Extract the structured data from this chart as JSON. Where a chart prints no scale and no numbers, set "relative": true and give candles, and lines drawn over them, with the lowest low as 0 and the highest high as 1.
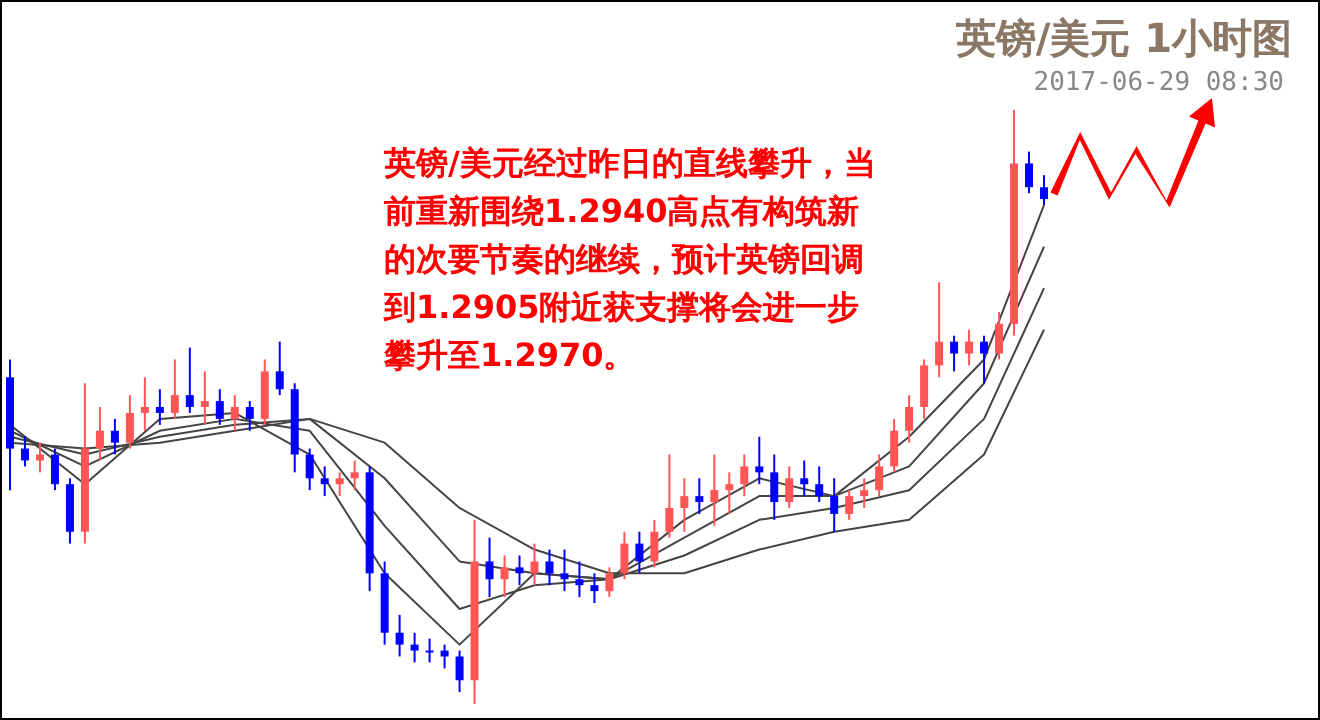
{
  "chart_data": {
    "type": "candlestick",
    "relative": true,
    "title": "英镑/美元 1小时图",
    "subtitle": "2017-06-29 08:30",
    "annotations": [
      "英镑/美元经过昨日的直线攀升，当前重新围绕1.2940高点有构筑新的次要节奏的继续，预计英镑回调到1.2905附近获支撑将会进一步攀升至1.2970。"
    ],
    "categories": [
      null,
      null,
      null,
      null,
      null,
      null,
      null,
      null,
      null,
      null,
      null,
      null,
      null,
      null,
      null,
      null,
      null,
      null,
      null,
      null,
      null,
      null,
      null,
      null,
      null,
      null,
      null,
      null,
      null,
      null,
      null,
      null,
      null,
      null,
      null,
      null,
      null,
      null,
      null,
      null,
      null,
      null,
      null,
      null,
      null,
      null,
      null,
      null,
      null,
      null,
      null,
      null,
      null,
      null,
      null,
      null,
      null,
      null,
      null,
      null,
      null,
      null,
      null,
      null,
      null,
      null,
      null,
      null,
      null,
      null
    ],
    "ohlc": [
      [
        0.55,
        0.58,
        0.36,
        0.43
      ],
      [
        0.43,
        0.45,
        0.4,
        0.41
      ],
      [
        0.41,
        0.44,
        0.39,
        0.42
      ],
      [
        0.42,
        0.43,
        0.36,
        0.37
      ],
      [
        0.37,
        0.38,
        0.27,
        0.29
      ],
      [
        0.29,
        0.54,
        0.27,
        0.43
      ],
      [
        0.43,
        0.5,
        0.41,
        0.46
      ],
      [
        0.46,
        0.48,
        0.42,
        0.44
      ],
      [
        0.44,
        0.52,
        0.43,
        0.49
      ],
      [
        0.49,
        0.55,
        0.46,
        0.5
      ],
      [
        0.5,
        0.53,
        0.47,
        0.49
      ],
      [
        0.49,
        0.58,
        0.48,
        0.52
      ],
      [
        0.52,
        0.6,
        0.49,
        0.5
      ],
      [
        0.5,
        0.56,
        0.47,
        0.51
      ],
      [
        0.51,
        0.53,
        0.47,
        0.48
      ],
      [
        0.48,
        0.52,
        0.46,
        0.5
      ],
      [
        0.5,
        0.51,
        0.46,
        0.48
      ],
      [
        0.48,
        0.58,
        0.47,
        0.56
      ],
      [
        0.56,
        0.61,
        0.52,
        0.53
      ],
      [
        0.53,
        0.54,
        0.39,
        0.42
      ],
      [
        0.42,
        0.43,
        0.36,
        0.38
      ],
      [
        0.38,
        0.4,
        0.35,
        0.37
      ],
      [
        0.37,
        0.39,
        0.35,
        0.38
      ],
      [
        0.38,
        0.41,
        0.36,
        0.39
      ],
      [
        0.39,
        0.4,
        0.19,
        0.22
      ],
      [
        0.22,
        0.24,
        0.1,
        0.12
      ],
      [
        0.12,
        0.15,
        0.08,
        0.1
      ],
      [
        0.1,
        0.12,
        0.07,
        0.09
      ],
      [
        0.09,
        0.11,
        0.07,
        0.09
      ],
      [
        0.09,
        0.1,
        0.06,
        0.08
      ],
      [
        0.08,
        0.09,
        0.02,
        0.04
      ],
      [
        0.04,
        0.31,
        0.0,
        0.24
      ],
      [
        0.24,
        0.28,
        0.18,
        0.21
      ],
      [
        0.21,
        0.25,
        0.18,
        0.23
      ],
      [
        0.23,
        0.25,
        0.2,
        0.22
      ],
      [
        0.22,
        0.27,
        0.2,
        0.24
      ],
      [
        0.24,
        0.26,
        0.2,
        0.22
      ],
      [
        0.22,
        0.26,
        0.19,
        0.21
      ],
      [
        0.21,
        0.24,
        0.18,
        0.2
      ],
      [
        0.2,
        0.22,
        0.17,
        0.19
      ],
      [
        0.19,
        0.23,
        0.18,
        0.22
      ],
      [
        0.22,
        0.29,
        0.21,
        0.27
      ],
      [
        0.27,
        0.29,
        0.22,
        0.24
      ],
      [
        0.24,
        0.31,
        0.23,
        0.29
      ],
      [
        0.29,
        0.42,
        0.28,
        0.33
      ],
      [
        0.33,
        0.38,
        0.29,
        0.35
      ],
      [
        0.35,
        0.38,
        0.32,
        0.34
      ],
      [
        0.34,
        0.42,
        0.3,
        0.36
      ],
      [
        0.36,
        0.39,
        0.32,
        0.37
      ],
      [
        0.37,
        0.42,
        0.35,
        0.4
      ],
      [
        0.4,
        0.45,
        0.37,
        0.39
      ],
      [
        0.39,
        0.42,
        0.31,
        0.34
      ],
      [
        0.34,
        0.4,
        0.33,
        0.38
      ],
      [
        0.38,
        0.41,
        0.35,
        0.37
      ],
      [
        0.37,
        0.4,
        0.34,
        0.35
      ],
      [
        0.35,
        0.38,
        0.29,
        0.32
      ],
      [
        0.32,
        0.36,
        0.31,
        0.35
      ],
      [
        0.35,
        0.38,
        0.33,
        0.36
      ],
      [
        0.36,
        0.42,
        0.35,
        0.4
      ],
      [
        0.4,
        0.48,
        0.39,
        0.46
      ],
      [
        0.46,
        0.52,
        0.44,
        0.5
      ],
      [
        0.5,
        0.58,
        0.48,
        0.57
      ],
      [
        0.57,
        0.71,
        0.55,
        0.61
      ],
      [
        0.61,
        0.62,
        0.56,
        0.59
      ],
      [
        0.59,
        0.63,
        0.57,
        0.61
      ],
      [
        0.61,
        0.62,
        0.54,
        0.59
      ],
      [
        0.59,
        0.66,
        0.58,
        0.64
      ],
      [
        0.64,
        1.0,
        0.62,
        0.91
      ],
      [
        0.91,
        0.93,
        0.86,
        0.87
      ],
      [
        0.87,
        0.89,
        0.84,
        0.85
      ]
    ],
    "colors": [
      "#0000ff",
      "#0000ff",
      "#ff5555",
      "#0000ff",
      "#0000ff",
      "#ff5555",
      "#ff5555",
      "#0000ff",
      "#ff5555",
      "#ff5555",
      "#0000ff",
      "#ff5555",
      "#0000ff",
      "#ff5555",
      "#0000ff",
      "#ff5555",
      "#0000ff",
      "#ff5555",
      "#0000ff",
      "#0000ff",
      "#0000ff",
      "#0000ff",
      "#ff5555",
      "#ff5555",
      "#0000ff",
      "#0000ff",
      "#0000ff",
      "#0000ff",
      "#0000ff",
      "#0000ff",
      "#0000ff",
      "#ff5555",
      "#0000ff",
      "#ff5555",
      "#0000ff",
      "#ff5555",
      "#0000ff",
      "#0000ff",
      "#0000ff",
      "#0000ff",
      "#ff5555",
      "#ff5555",
      "#0000ff",
      "#ff5555",
      "#ff5555",
      "#ff5555",
      "#0000ff",
      "#ff5555",
      "#ff5555",
      "#ff5555",
      "#0000ff",
      "#0000ff",
      "#ff5555",
      "#0000ff",
      "#0000ff",
      "#0000ff",
      "#ff5555",
      "#ff5555",
      "#ff5555",
      "#ff5555",
      "#ff5555",
      "#ff5555",
      "#ff5555",
      "#0000ff",
      "#ff5555",
      "#0000ff",
      "#ff5555",
      "#ff5555",
      "#0000ff",
      "#0000ff"
    ],
    "series": [
      {
        "type": "line",
        "color": "#444444",
        "values": [
          0.47,
          null,
          null,
          null,
          null,
          0.37,
          null,
          null,
          null,
          null,
          0.48,
          null,
          null,
          null,
          null,
          0.49,
          null,
          null,
          null,
          null,
          0.42,
          null,
          null,
          null,
          null,
          0.22,
          null,
          null,
          null,
          null,
          0.1,
          null,
          null,
          null,
          null,
          0.22,
          null,
          null,
          null,
          null,
          0.21,
          null,
          null,
          null,
          null,
          0.31,
          null,
          null,
          null,
          null,
          0.38,
          null,
          null,
          null,
          null,
          0.35,
          null,
          null,
          null,
          null,
          0.45,
          null,
          null,
          null,
          null,
          0.58,
          null,
          null,
          null,
          0.84
        ]
      },
      {
        "type": "line",
        "color": "#444444",
        "values": [
          0.46,
          null,
          null,
          null,
          null,
          0.4,
          null,
          null,
          null,
          null,
          0.46,
          null,
          null,
          null,
          null,
          0.48,
          null,
          null,
          null,
          null,
          0.46,
          null,
          null,
          null,
          null,
          0.3,
          null,
          null,
          null,
          null,
          0.16,
          null,
          null,
          null,
          null,
          0.2,
          null,
          null,
          null,
          null,
          0.21,
          null,
          null,
          null,
          null,
          0.28,
          null,
          null,
          null,
          null,
          0.35,
          null,
          null,
          null,
          null,
          0.35,
          null,
          null,
          null,
          null,
          0.4,
          null,
          null,
          null,
          null,
          0.54,
          null,
          null,
          null,
          0.77
        ]
      },
      {
        "type": "line",
        "color": "#444444",
        "values": [
          0.45,
          null,
          null,
          null,
          null,
          0.42,
          null,
          null,
          null,
          null,
          0.45,
          null,
          null,
          null,
          null,
          0.47,
          null,
          null,
          null,
          null,
          0.48,
          null,
          null,
          null,
          null,
          0.38,
          null,
          null,
          null,
          null,
          0.24,
          null,
          null,
          null,
          null,
          0.22,
          null,
          null,
          null,
          null,
          0.21,
          null,
          null,
          null,
          null,
          0.25,
          null,
          null,
          null,
          null,
          0.31,
          null,
          null,
          null,
          null,
          0.33,
          null,
          null,
          null,
          null,
          0.36,
          null,
          null,
          null,
          null,
          0.48,
          null,
          null,
          null,
          0.7
        ]
      },
      {
        "type": "line",
        "color": "#444444",
        "values": [
          0.44,
          null,
          null,
          null,
          null,
          0.43,
          null,
          null,
          null,
          null,
          0.44,
          null,
          null,
          null,
          null,
          0.46,
          null,
          null,
          null,
          null,
          0.48,
          null,
          null,
          null,
          null,
          0.44,
          null,
          null,
          null,
          null,
          0.33,
          null,
          null,
          null,
          null,
          0.26,
          null,
          null,
          null,
          null,
          0.22,
          null,
          null,
          null,
          null,
          0.22,
          null,
          null,
          null,
          null,
          0.26,
          null,
          null,
          null,
          null,
          0.29,
          null,
          null,
          null,
          null,
          0.31,
          null,
          null,
          null,
          null,
          0.42,
          null,
          null,
          null,
          0.63
        ]
      }
    ]
  }
}
